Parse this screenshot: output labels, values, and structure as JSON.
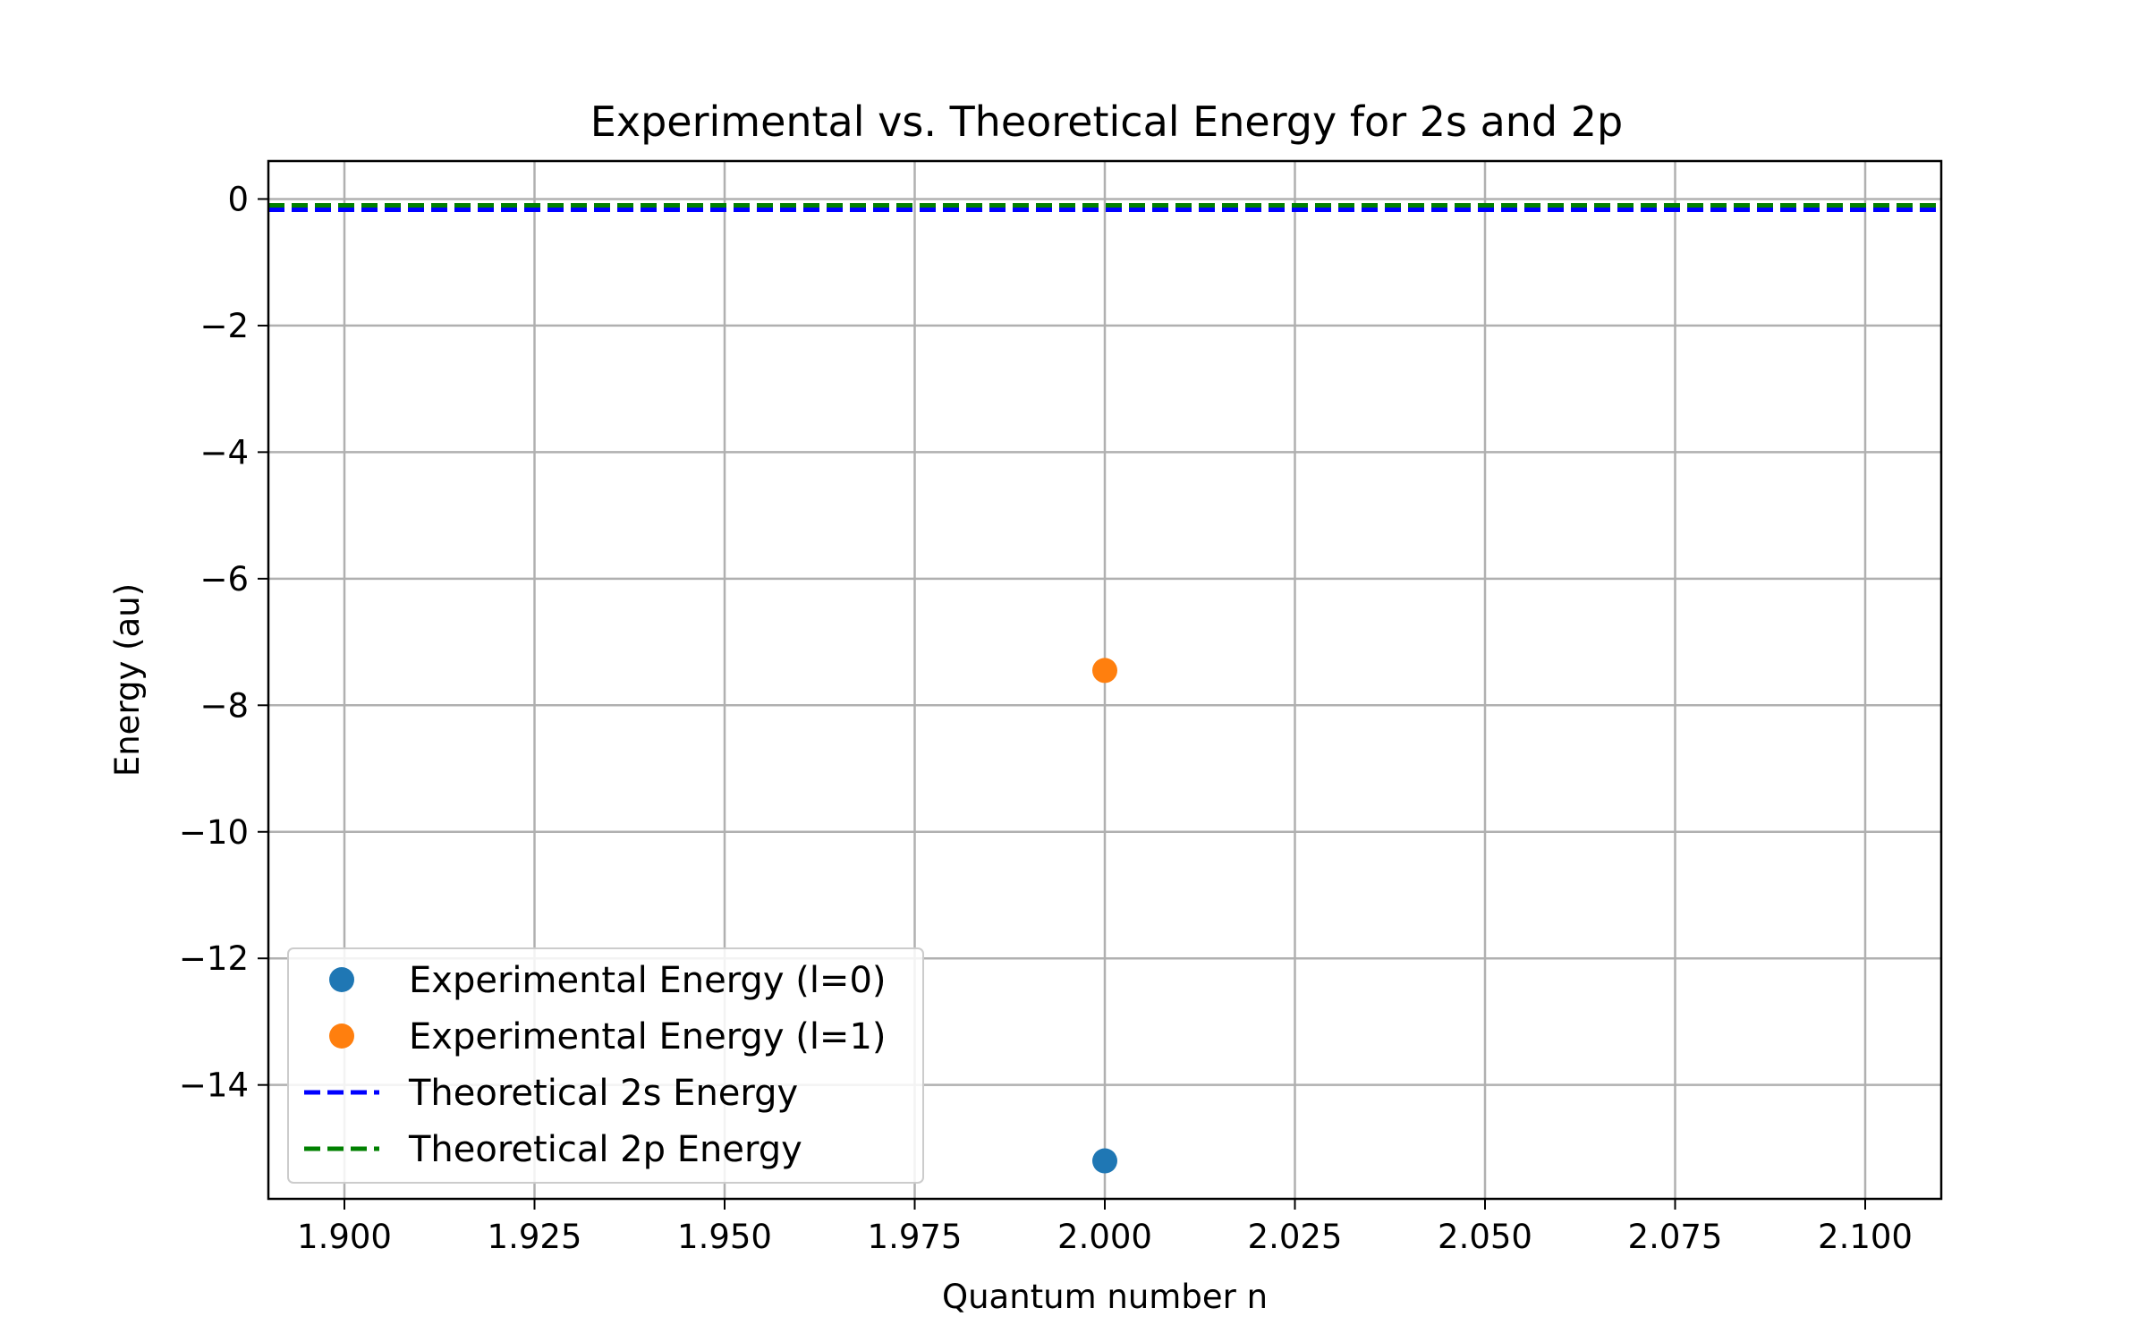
{
  "chart_data": {
    "type": "scatter",
    "title": "Experimental vs. Theoretical Energy for 2s and 2p",
    "xlabel": "Quantum number n",
    "ylabel": "Energy (au)",
    "xlim": [
      1.89,
      2.11
    ],
    "ylim": [
      -15.8,
      0.6
    ],
    "xticks": [
      1.9,
      1.925,
      1.95,
      1.975,
      2.0,
      2.025,
      2.05,
      2.075,
      2.1
    ],
    "xtick_labels": [
      "1.900",
      "1.925",
      "1.950",
      "1.975",
      "2.000",
      "2.025",
      "2.050",
      "2.075",
      "2.100"
    ],
    "yticks": [
      0,
      -2,
      -4,
      -6,
      -8,
      -10,
      -12,
      -14
    ],
    "ytick_labels": [
      "0",
      "−2",
      "−4",
      "−6",
      "−8",
      "−10",
      "−12",
      "−14"
    ],
    "grid": true,
    "legend_position": "lower-left",
    "series": [
      {
        "name": "Experimental Energy (l=0)",
        "kind": "scatter",
        "color": "#1f77b4",
        "points": [
          {
            "x": 2.0,
            "y": -15.2
          }
        ]
      },
      {
        "name": "Experimental Energy (l=1)",
        "kind": "scatter",
        "color": "#ff7f0e",
        "points": [
          {
            "x": 2.0,
            "y": -7.45
          }
        ]
      },
      {
        "name": "Theoretical 2s Energy",
        "kind": "hline",
        "color": "#0000ff",
        "y": -0.17
      },
      {
        "name": "Theoretical 2p Energy",
        "kind": "hline",
        "color": "#008000",
        "y": -0.1
      }
    ]
  }
}
